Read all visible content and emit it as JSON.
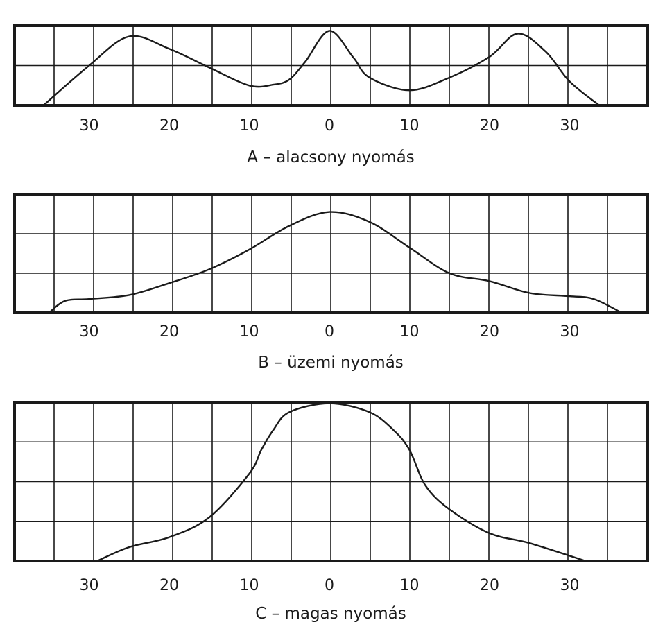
{
  "colors": {
    "ink": "#1a1a1a",
    "background": "#ffffff"
  },
  "chart_data": [
    {
      "type": "line",
      "caption": "A – alacsony nyomás",
      "x_tick_labels": [
        "30",
        "20",
        "10",
        "0",
        "10",
        "20",
        "30"
      ],
      "x_tick_values": [
        -30,
        -20,
        -10,
        0,
        10,
        20,
        30
      ],
      "xlim": [
        -40,
        40
      ],
      "ylim": [
        0,
        2
      ],
      "grid": true,
      "series": [
        {
          "x": [
            -35.7,
            -30,
            -25,
            -20,
            -15,
            -10,
            -7,
            -5,
            -3,
            0,
            3,
            5,
            10,
            15,
            20,
            23.5,
            27,
            30,
            33.7
          ],
          "y": [
            0.0,
            1.0,
            1.73,
            1.42,
            0.95,
            0.5,
            0.52,
            0.65,
            1.1,
            1.87,
            1.2,
            0.7,
            0.38,
            0.7,
            1.22,
            1.8,
            1.35,
            0.6,
            0.0
          ]
        }
      ]
    },
    {
      "type": "line",
      "caption": "B – üzemi nyomás",
      "x_tick_labels": [
        "30",
        "20",
        "10",
        "0",
        "10",
        "20",
        "30"
      ],
      "x_tick_values": [
        -30,
        -20,
        -10,
        0,
        10,
        20,
        30
      ],
      "xlim": [
        -40,
        40
      ],
      "ylim": [
        0,
        3
      ],
      "grid": true,
      "series": [
        {
          "x": [
            -35,
            -33,
            -30,
            -25,
            -20,
            -15,
            -10,
            -5,
            0,
            5,
            10,
            15,
            20,
            25,
            30,
            33,
            36.5
          ],
          "y": [
            0.0,
            0.3,
            0.35,
            0.45,
            0.75,
            1.1,
            1.6,
            2.2,
            2.55,
            2.3,
            1.65,
            1.0,
            0.8,
            0.5,
            0.42,
            0.35,
            0.0
          ]
        }
      ]
    },
    {
      "type": "line",
      "caption": "C – magas nyomás",
      "x_tick_labels": [
        "30",
        "20",
        "10",
        "0",
        "10",
        "20",
        "30"
      ],
      "x_tick_values": [
        -30,
        -20,
        -10,
        0,
        10,
        20,
        30
      ],
      "xlim": [
        -40,
        40
      ],
      "ylim": [
        0,
        4
      ],
      "grid": true,
      "series": [
        {
          "x": [
            -29,
            -25,
            -20,
            -15,
            -10,
            -8.5,
            -7,
            -5,
            0,
            5,
            8,
            10,
            12,
            15,
            20,
            25,
            32
          ],
          "y": [
            0.0,
            0.35,
            0.6,
            1.1,
            2.2,
            2.8,
            3.3,
            3.75,
            3.97,
            3.75,
            3.3,
            2.8,
            1.9,
            1.3,
            0.7,
            0.45,
            0.0
          ]
        }
      ]
    }
  ]
}
